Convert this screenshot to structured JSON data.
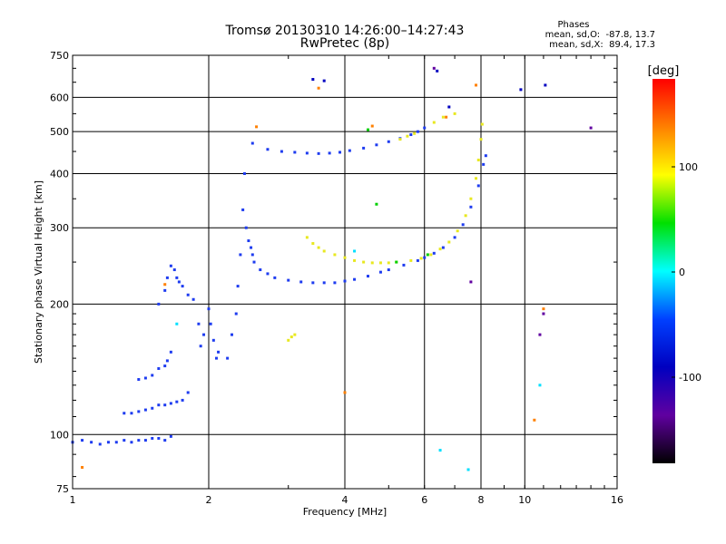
{
  "chart_data": {
    "type": "scatter",
    "title": "Tromsø 20130310 14:26:00–14:27:43",
    "subtitle": "RwPretec (8p)",
    "xlabel": "Frequency [MHz]",
    "ylabel": "Stationary phase Virtual Height [km]",
    "x_scale": "log",
    "y_scale": "log",
    "xlim": [
      1,
      16
    ],
    "ylim": [
      75,
      750
    ],
    "x_ticks": [
      "1",
      "2",
      "4",
      "6",
      "8",
      "10",
      "16"
    ],
    "y_ticks": [
      "75",
      "100",
      "200",
      "300",
      "400",
      "500",
      "600",
      "750"
    ],
    "grid": true,
    "phases": {
      "heading": "Phases",
      "line_o": "mean, sd,O:  -87.8, 13.7",
      "line_x": "mean, sd,X:  89.4, 17.3"
    },
    "colorbar": {
      "label": "[deg]",
      "ticks": [
        "100",
        "0",
        "-100"
      ],
      "colors": [
        "#ff0000",
        "#ff8000",
        "#ffff00",
        "#00e000",
        "#00ffff",
        "#0040ff",
        "#0000c0",
        "#6000a0",
        "#000000"
      ]
    },
    "series": [
      {
        "color": "#1e3cf0",
        "points": [
          [
            1.0,
            96
          ],
          [
            1.05,
            97
          ],
          [
            1.1,
            96
          ],
          [
            1.15,
            95
          ],
          [
            1.2,
            96
          ],
          [
            1.25,
            96
          ],
          [
            1.3,
            97
          ],
          [
            1.35,
            96
          ],
          [
            1.4,
            97
          ],
          [
            1.45,
            97
          ],
          [
            1.5,
            98
          ],
          [
            1.55,
            98
          ],
          [
            1.6,
            97
          ],
          [
            1.65,
            99
          ],
          [
            1.3,
            112
          ],
          [
            1.35,
            112
          ],
          [
            1.4,
            113
          ],
          [
            1.45,
            114
          ],
          [
            1.5,
            115
          ],
          [
            1.55,
            117
          ],
          [
            1.6,
            117
          ],
          [
            1.65,
            118
          ],
          [
            1.7,
            119
          ],
          [
            1.75,
            120
          ],
          [
            1.8,
            125
          ],
          [
            1.4,
            134
          ],
          [
            1.45,
            135
          ],
          [
            1.5,
            137
          ],
          [
            1.55,
            142
          ],
          [
            1.6,
            144
          ],
          [
            1.62,
            148
          ],
          [
            1.65,
            155
          ],
          [
            1.55,
            200
          ],
          [
            1.6,
            215
          ],
          [
            1.62,
            230
          ],
          [
            1.65,
            245
          ],
          [
            1.68,
            240
          ],
          [
            1.7,
            230
          ],
          [
            1.72,
            225
          ],
          [
            1.75,
            220
          ],
          [
            1.8,
            210
          ],
          [
            1.85,
            205
          ],
          [
            1.9,
            180
          ],
          [
            1.92,
            160
          ],
          [
            1.95,
            170
          ],
          [
            2.0,
            195
          ],
          [
            2.02,
            180
          ],
          [
            2.05,
            165
          ],
          [
            2.08,
            150
          ],
          [
            2.1,
            155
          ],
          [
            2.2,
            150
          ],
          [
            2.25,
            170
          ],
          [
            2.3,
            190
          ],
          [
            2.32,
            220
          ],
          [
            2.35,
            260
          ],
          [
            2.38,
            330
          ],
          [
            2.4,
            400
          ],
          [
            2.42,
            300
          ],
          [
            2.45,
            280
          ],
          [
            2.48,
            270
          ],
          [
            2.5,
            260
          ],
          [
            2.52,
            250
          ],
          [
            2.6,
            240
          ],
          [
            2.7,
            235
          ],
          [
            2.8,
            230
          ],
          [
            3.0,
            227
          ],
          [
            3.2,
            225
          ],
          [
            3.4,
            224
          ],
          [
            3.6,
            224
          ],
          [
            3.8,
            224
          ],
          [
            4.0,
            226
          ],
          [
            4.2,
            228
          ],
          [
            4.5,
            232
          ],
          [
            4.8,
            237
          ],
          [
            5.0,
            240
          ],
          [
            5.4,
            246
          ],
          [
            5.8,
            252
          ],
          [
            6.0,
            256
          ],
          [
            6.3,
            262
          ],
          [
            6.6,
            270
          ],
          [
            7.0,
            285
          ],
          [
            7.3,
            305
          ],
          [
            7.6,
            335
          ],
          [
            7.9,
            375
          ],
          [
            8.1,
            420
          ],
          [
            8.2,
            440
          ],
          [
            2.5,
            470
          ],
          [
            2.7,
            455
          ],
          [
            2.9,
            450
          ],
          [
            3.1,
            448
          ],
          [
            3.3,
            446
          ],
          [
            3.5,
            445
          ],
          [
            3.7,
            446
          ],
          [
            3.9,
            448
          ],
          [
            4.1,
            452
          ],
          [
            4.4,
            458
          ],
          [
            4.7,
            466
          ],
          [
            5.0,
            474
          ],
          [
            5.3,
            482
          ],
          [
            5.6,
            492
          ],
          [
            5.8,
            500
          ],
          [
            6.0,
            510
          ]
        ]
      },
      {
        "color": "#e8e820",
        "points": [
          [
            3.3,
            285
          ],
          [
            3.4,
            276
          ],
          [
            3.5,
            270
          ],
          [
            3.6,
            265
          ],
          [
            3.8,
            260
          ],
          [
            4.0,
            256
          ],
          [
            4.2,
            252
          ],
          [
            4.4,
            250
          ],
          [
            4.6,
            249
          ],
          [
            4.8,
            249
          ],
          [
            5.0,
            249
          ],
          [
            5.2,
            250
          ],
          [
            5.6,
            252
          ],
          [
            5.9,
            255
          ],
          [
            6.2,
            260
          ],
          [
            6.5,
            268
          ],
          [
            6.8,
            278
          ],
          [
            7.1,
            295
          ],
          [
            7.4,
            320
          ],
          [
            7.6,
            350
          ],
          [
            7.8,
            390
          ],
          [
            7.9,
            430
          ],
          [
            8.0,
            480
          ],
          [
            8.05,
            520
          ],
          [
            5.3,
            480
          ],
          [
            5.5,
            488
          ],
          [
            5.7,
            495
          ],
          [
            6.3,
            525
          ],
          [
            6.6,
            540
          ],
          [
            7.0,
            550
          ],
          [
            3.0,
            165
          ],
          [
            3.05,
            168
          ],
          [
            3.1,
            170
          ]
        ]
      },
      {
        "color": "#ff8000",
        "points": [
          [
            1.05,
            84
          ],
          [
            1.6,
            222
          ],
          [
            2.55,
            513
          ],
          [
            3.5,
            630
          ],
          [
            4.6,
            515
          ],
          [
            6.7,
            540
          ],
          [
            7.8,
            640
          ],
          [
            10.5,
            108
          ],
          [
            11.0,
            195
          ],
          [
            4.0,
            125
          ]
        ]
      },
      {
        "color": "#00d000",
        "points": [
          [
            4.7,
            340
          ],
          [
            5.2,
            250
          ],
          [
            6.1,
            260
          ],
          [
            4.5,
            505
          ]
        ]
      },
      {
        "color": "#00e0ff",
        "points": [
          [
            6.5,
            92
          ],
          [
            7.5,
            83
          ],
          [
            10.8,
            130
          ],
          [
            4.2,
            265
          ],
          [
            1.7,
            180
          ]
        ]
      },
      {
        "color": "#6000a0",
        "points": [
          [
            14.0,
            510
          ],
          [
            7.6,
            225
          ],
          [
            10.8,
            170
          ],
          [
            11.0,
            190
          ],
          [
            6.3,
            700
          ]
        ]
      },
      {
        "color": "#0000c0",
        "points": [
          [
            3.4,
            660
          ],
          [
            3.6,
            655
          ],
          [
            9.8,
            625
          ],
          [
            11.1,
            640
          ],
          [
            6.4,
            690
          ],
          [
            6.8,
            570
          ]
        ]
      }
    ]
  }
}
